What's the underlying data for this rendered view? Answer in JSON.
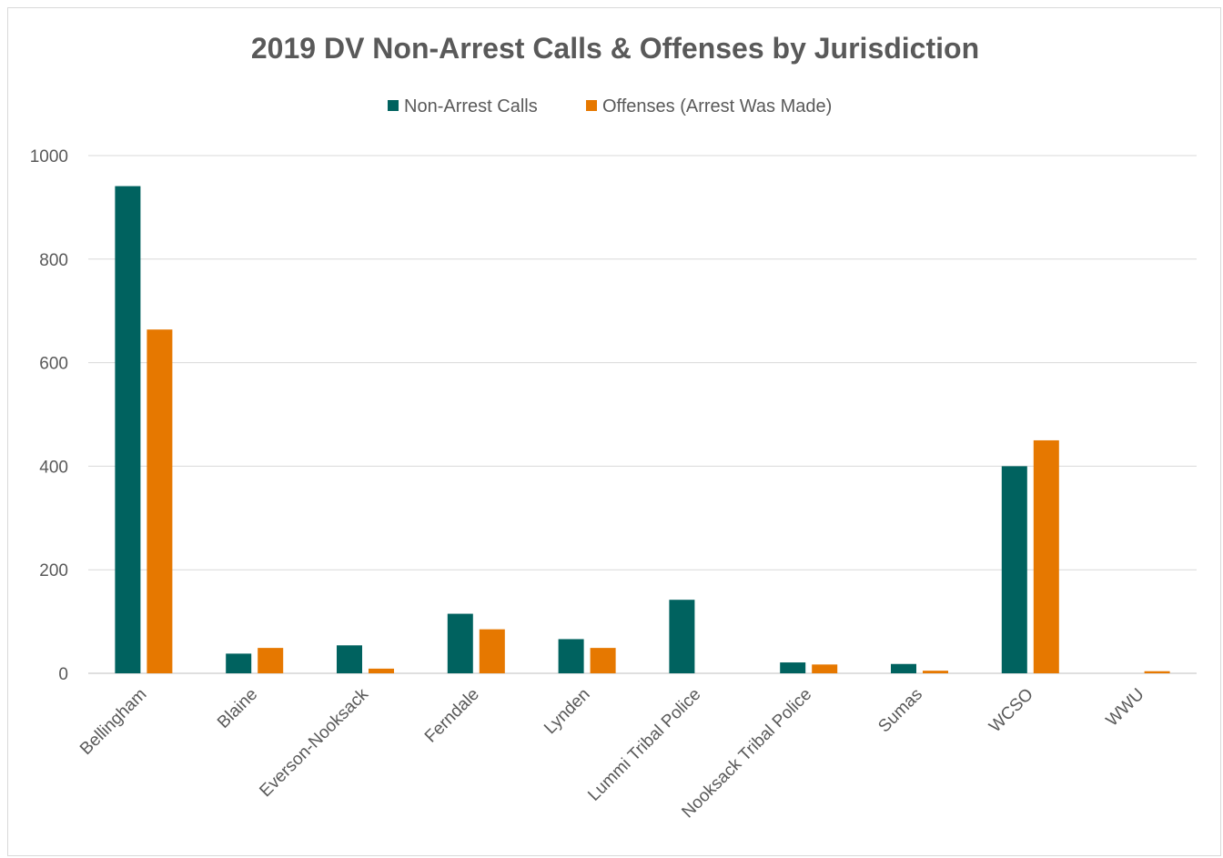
{
  "chart_data": {
    "type": "bar",
    "title": "2019 DV Non-Arrest Calls & Offenses by Jurisdiction",
    "xlabel": "",
    "ylabel": "",
    "ylim": [
      0,
      1000
    ],
    "yticks": [
      0,
      200,
      400,
      600,
      800,
      1000
    ],
    "grid": true,
    "legend_position": "top",
    "categories": [
      "Bellingham",
      "Blaine",
      "Everson-Nooksack",
      "Ferndale",
      "Lynden",
      "Lummi Tribal Police",
      "Nooksack Tribal Police",
      "Sumas",
      "WCSO",
      "WWU"
    ],
    "series": [
      {
        "name": "Non-Arrest Calls",
        "color": "#00625f",
        "values": [
          941,
          38,
          54,
          115,
          66,
          142,
          21,
          18,
          400,
          0
        ]
      },
      {
        "name": "Offenses (Arrest Was Made)",
        "color": "#e67800",
        "values": [
          664,
          49,
          9,
          85,
          49,
          0,
          17,
          5,
          450,
          4
        ]
      }
    ]
  }
}
